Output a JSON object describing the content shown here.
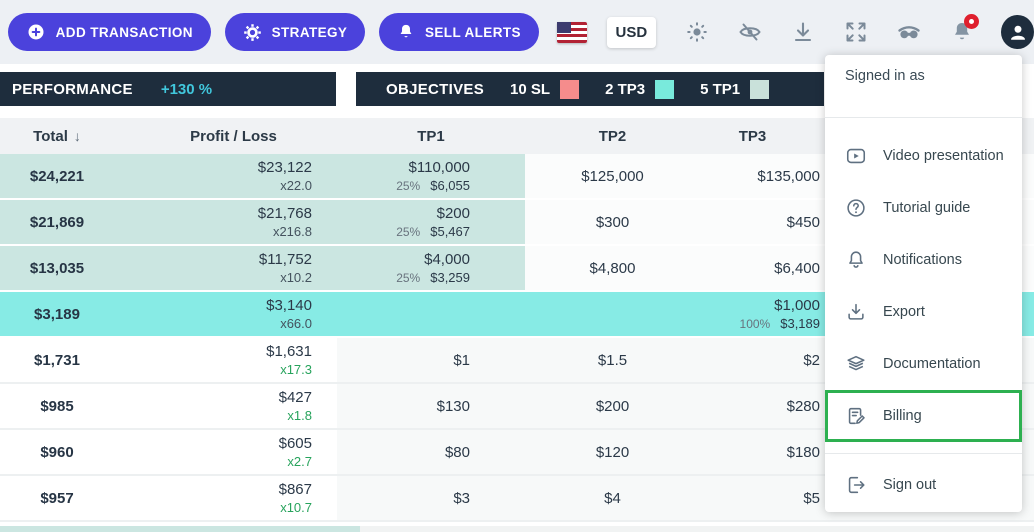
{
  "toolbar": {
    "buttons": [
      {
        "label": "ADD TRANSACTION",
        "icon": "plus-circle-icon"
      },
      {
        "label": "STRATEGY",
        "icon": "gear-icon"
      },
      {
        "label": "SELL ALERTS",
        "icon": "bell-icon"
      }
    ],
    "flag": "us-flag-icon",
    "currency": "USD",
    "icons": [
      "theme-sun-icon",
      "hide-values-eye-off-icon",
      "download-icon",
      "fullscreen-expand-icon",
      "incognito-mask-icon",
      "notifications-bell-icon",
      "account-avatar-icon"
    ]
  },
  "performance": {
    "label": "PERFORMANCE",
    "value": "+130 %"
  },
  "objectives": {
    "label": "OBJECTIVES",
    "legend": [
      {
        "label": "10 SL",
        "color": "#f58c8c"
      },
      {
        "label": "2 TP3",
        "color": "#79eadc"
      },
      {
        "label": "5 TP1",
        "color": "#c9e1da"
      }
    ]
  },
  "table": {
    "sort_icon": "↓",
    "headers": {
      "total": "Total",
      "pl": "Profit / Loss",
      "tp1": "TP1",
      "tp2": "TP2",
      "tp3": "TP3"
    },
    "rows": [
      {
        "total": "$24,221",
        "pl": "$23,122",
        "mult": "x22.0",
        "tp1": "$110,000",
        "tp1_pct": "25%",
        "tp1_sub": "$6,055",
        "tp2": "$125,000",
        "tp3": "$135,000",
        "tp3_pct": "",
        "tp3_sub": ""
      },
      {
        "total": "$21,869",
        "pl": "$21,768",
        "mult": "x216.8",
        "tp1": "$200",
        "tp1_pct": "25%",
        "tp1_sub": "$5,467",
        "tp2": "$300",
        "tp3": "$450",
        "tp3_pct": "",
        "tp3_sub": ""
      },
      {
        "total": "$13,035",
        "pl": "$11,752",
        "mult": "x10.2",
        "tp1": "$4,000",
        "tp1_pct": "25%",
        "tp1_sub": "$3,259",
        "tp2": "$4,800",
        "tp3": "$6,400",
        "tp3_pct": "",
        "tp3_sub": ""
      },
      {
        "total": "$3,189",
        "pl": "$3,140",
        "mult": "x66.0",
        "tp1": "",
        "tp1_pct": "",
        "tp1_sub": "",
        "tp2": "",
        "tp3": "$1,000",
        "tp3_pct": "100%",
        "tp3_sub": "$3,189"
      },
      {
        "total": "$1,731",
        "pl": "$1,631",
        "mult": "x17.3",
        "tp1": "$1",
        "tp1_pct": "",
        "tp1_sub": "",
        "tp2": "$1.5",
        "tp3": "$2",
        "tp3_pct": "",
        "tp3_sub": ""
      },
      {
        "total": "$985",
        "pl": "$427",
        "mult": "x1.8",
        "tp1": "$130",
        "tp1_pct": "",
        "tp1_sub": "",
        "tp2": "$200",
        "tp3": "$280",
        "tp3_pct": "",
        "tp3_sub": ""
      },
      {
        "total": "$960",
        "pl": "$605",
        "mult": "x2.7",
        "tp1": "$80",
        "tp1_pct": "",
        "tp1_sub": "",
        "tp2": "$120",
        "tp3": "$180",
        "tp3_pct": "",
        "tp3_sub": ""
      },
      {
        "total": "$957",
        "pl": "$867",
        "mult": "x10.7",
        "tp1": "$3",
        "tp1_pct": "",
        "tp1_sub": "",
        "tp2": "$4",
        "tp3": "$5",
        "tp3_pct": "",
        "tp3_sub": ""
      }
    ]
  },
  "menu": {
    "signed_in_as": "Signed in as",
    "items": [
      {
        "label": "Video presentation",
        "icon": "video-play-icon"
      },
      {
        "label": "Tutorial guide",
        "icon": "question-circle-icon"
      },
      {
        "label": "Notifications",
        "icon": "bell-outline-icon"
      },
      {
        "label": "Export",
        "icon": "export-download-icon"
      },
      {
        "label": "Documentation",
        "icon": "layers-icon"
      },
      {
        "label": "Billing",
        "icon": "invoice-edit-icon"
      },
      {
        "label": "Sign out",
        "icon": "sign-out-icon"
      }
    ],
    "highlight_color": "#2db050"
  },
  "colors": {
    "button_purple": "#4b42dc",
    "bar_dark": "#1e2d3d",
    "performance_cyan": "#41c7dc",
    "row_teal": "#cbe6e1",
    "row_cyan": "#87ebe5",
    "multiplier_green": "#27a35c",
    "badge_red": "#df1f2d",
    "sl_swatch": "#f58c8c",
    "tp3_swatch": "#79eadc",
    "tp1_swatch": "#c9e1da"
  }
}
